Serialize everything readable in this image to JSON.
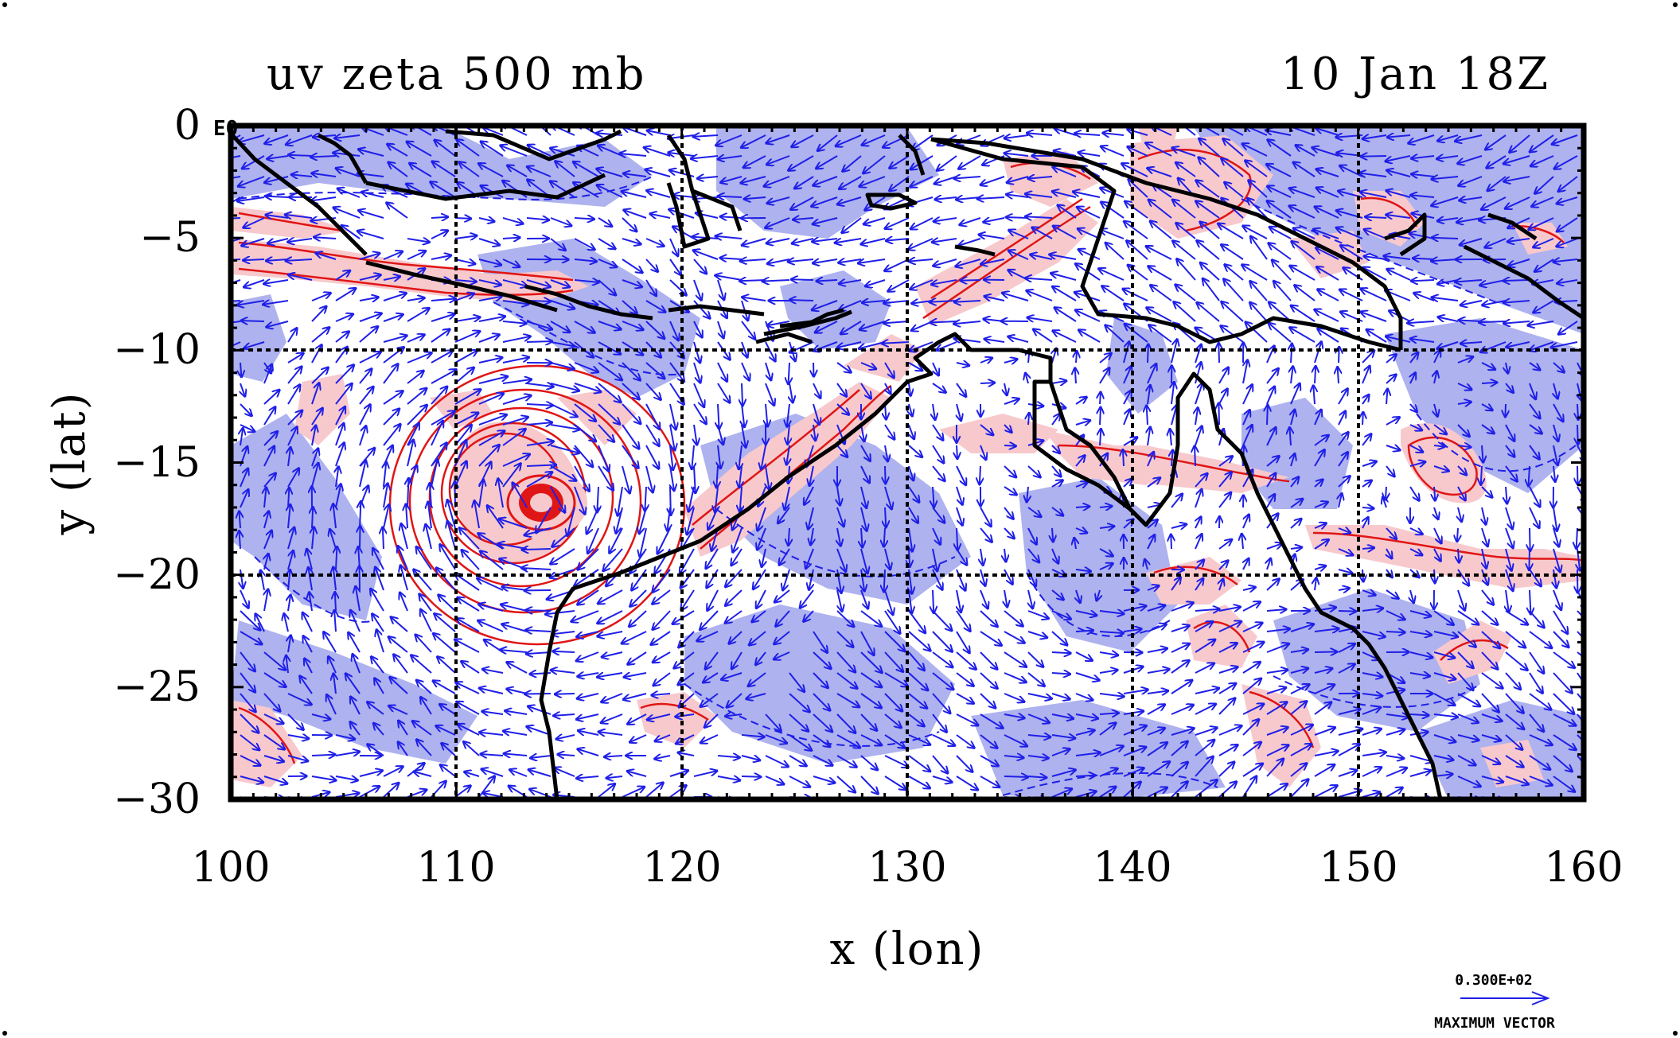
{
  "title_left": "uv zeta 500 mb",
  "title_right": "10 Jan 18Z",
  "corner_label": "E0",
  "x_label": "x (lon)",
  "y_label": "y (lat)",
  "x_ticks": [
    "100",
    "110",
    "120",
    "130",
    "140",
    "150",
    "160"
  ],
  "y_ticks": [
    "0",
    "−5",
    "−10",
    "−15",
    "−20",
    "−25",
    "−30"
  ],
  "vector_key": {
    "value": "0.300E+02",
    "label": "MAXIMUM VECTOR",
    "color": "#1f1fe8"
  },
  "colors": {
    "positive_fill": "#f7c9cc",
    "positive_contour": "#e01515",
    "negative_fill": "#aeb2ee",
    "negative_contour": "#1f1fe8",
    "coastline": "#000000"
  },
  "map": {
    "lon_range": [
      100,
      160
    ],
    "lat_range": [
      -30,
      0
    ],
    "grid_lons": [
      110,
      120,
      130,
      140,
      150
    ],
    "grid_lats": [
      -10,
      -20
    ],
    "cyclone_center": [
      113.5,
      -16.7
    ]
  }
}
